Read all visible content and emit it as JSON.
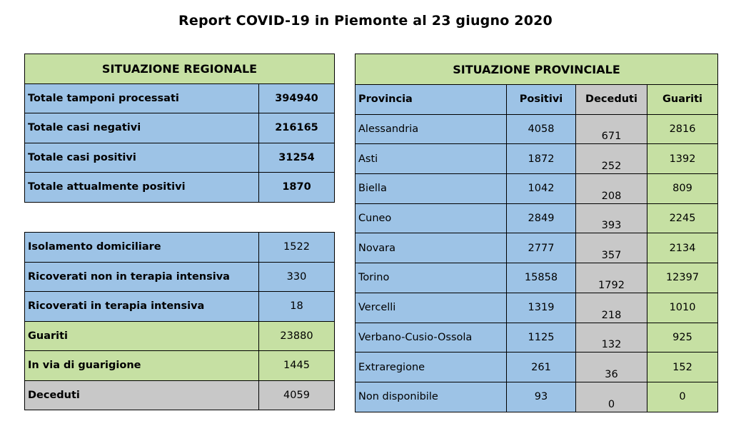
{
  "title": "Report COVID-19 in Piemonte al 23 giugno 2020",
  "regional": {
    "header": "SITUAZIONE REGIONALE",
    "rows": [
      {
        "label": "Totale tamponi processati",
        "value": "394940"
      },
      {
        "label": "Totale casi negativi",
        "value": "216165"
      },
      {
        "label": "Totale casi positivi",
        "value": "31254"
      },
      {
        "label": "Totale attualmente positivi",
        "value": "1870"
      }
    ]
  },
  "details": {
    "rows": [
      {
        "label": "Isolamento domiciliare",
        "value": "1522"
      },
      {
        "label": "Ricoverati non in terapia intensiva",
        "value": "330"
      },
      {
        "label": "Ricoverati in terapia intensiva",
        "value": "18"
      },
      {
        "label": "Guariti",
        "value": "23880"
      },
      {
        "label": "In via di guarigione",
        "value": "1445"
      },
      {
        "label": "Deceduti",
        "value": "4059"
      }
    ]
  },
  "provincial": {
    "header": "SITUAZIONE PROVINCIALE",
    "columns": [
      "Provincia",
      "Positivi",
      "Deceduti",
      "Guariti"
    ],
    "rows": [
      {
        "provincia": "Alessandria",
        "positivi": "4058",
        "deceduti": "671",
        "guariti": "2816"
      },
      {
        "provincia": "Asti",
        "positivi": "1872",
        "deceduti": "252",
        "guariti": "1392"
      },
      {
        "provincia": "Biella",
        "positivi": "1042",
        "deceduti": "208",
        "guariti": "809"
      },
      {
        "provincia": "Cuneo",
        "positivi": "2849",
        "deceduti": "393",
        "guariti": "2245"
      },
      {
        "provincia": "Novara",
        "positivi": "2777",
        "deceduti": "357",
        "guariti": "2134"
      },
      {
        "provincia": "Torino",
        "positivi": "15858",
        "deceduti": "1792",
        "guariti": "12397"
      },
      {
        "provincia": "Vercelli",
        "positivi": "1319",
        "deceduti": "218",
        "guariti": "1010"
      },
      {
        "provincia": "Verbano-Cusio-Ossola",
        "positivi": "1125",
        "deceduti": "132",
        "guariti": "925"
      },
      {
        "provincia": "Extraregione",
        "positivi": "261",
        "deceduti": "36",
        "guariti": "152"
      },
      {
        "provincia": "Non disponibile",
        "positivi": "93",
        "deceduti": "0",
        "guariti": "0"
      }
    ]
  },
  "colors": {
    "header_green": "#c6e0a3",
    "blue": "#9dc3e6",
    "green": "#c6e0a3",
    "grey": "#c8c8c8"
  }
}
